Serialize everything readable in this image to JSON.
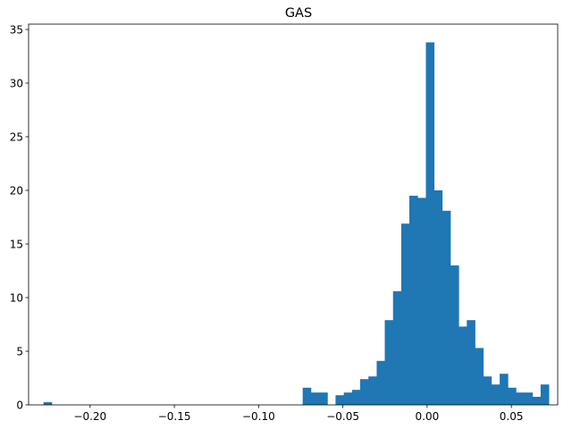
{
  "chart_data": {
    "type": "bar",
    "title": "GAS",
    "xlabel": "",
    "ylabel": "",
    "xlim": [
      -0.2365,
      0.0775
    ],
    "ylim": [
      0,
      35.5
    ],
    "grid": false,
    "color": "#1f77b4",
    "bin_width": 0.00487,
    "bin_start": -0.22761,
    "bins": [
      {
        "x": -0.2252,
        "height": 0.25
      },
      {
        "x": -0.0714,
        "height": 1.6
      },
      {
        "x": -0.0665,
        "height": 1.15
      },
      {
        "x": -0.0616,
        "height": 1.15
      },
      {
        "x": -0.0519,
        "height": 0.9
      },
      {
        "x": -0.047,
        "height": 1.15
      },
      {
        "x": -0.0421,
        "height": 1.4
      },
      {
        "x": -0.0373,
        "height": 2.4
      },
      {
        "x": -0.0324,
        "height": 2.65
      },
      {
        "x": -0.0275,
        "height": 4.1
      },
      {
        "x": -0.0227,
        "height": 7.9
      },
      {
        "x": -0.0178,
        "height": 10.6
      },
      {
        "x": -0.0129,
        "height": 16.9
      },
      {
        "x": -0.0081,
        "height": 19.5
      },
      {
        "x": -0.0032,
        "height": 19.3
      },
      {
        "x": 0.0017,
        "height": 33.8
      },
      {
        "x": 0.0065,
        "height": 20.0
      },
      {
        "x": 0.0114,
        "height": 18.1
      },
      {
        "x": 0.0163,
        "height": 13.0
      },
      {
        "x": 0.0211,
        "height": 7.3
      },
      {
        "x": 0.026,
        "height": 7.9
      },
      {
        "x": 0.0309,
        "height": 5.3
      },
      {
        "x": 0.0357,
        "height": 2.65
      },
      {
        "x": 0.0406,
        "height": 1.9
      },
      {
        "x": 0.0455,
        "height": 2.9
      },
      {
        "x": 0.0503,
        "height": 1.6
      },
      {
        "x": 0.0552,
        "height": 1.15
      },
      {
        "x": 0.0601,
        "height": 1.15
      },
      {
        "x": 0.0649,
        "height": 0.75
      },
      {
        "x": 0.0698,
        "height": 1.9
      }
    ],
    "x_ticks": [
      {
        "value": -0.2,
        "label": "−0.20"
      },
      {
        "value": -0.15,
        "label": "−0.15"
      },
      {
        "value": -0.1,
        "label": "−0.10"
      },
      {
        "value": -0.05,
        "label": "−0.05"
      },
      {
        "value": 0.0,
        "label": "0.00"
      },
      {
        "value": 0.05,
        "label": "0.05"
      }
    ],
    "y_ticks": [
      {
        "value": 0,
        "label": "0"
      },
      {
        "value": 5,
        "label": "5"
      },
      {
        "value": 10,
        "label": "10"
      },
      {
        "value": 15,
        "label": "15"
      },
      {
        "value": 20,
        "label": "20"
      },
      {
        "value": 25,
        "label": "25"
      },
      {
        "value": 30,
        "label": "30"
      },
      {
        "value": 35,
        "label": "35"
      }
    ]
  }
}
